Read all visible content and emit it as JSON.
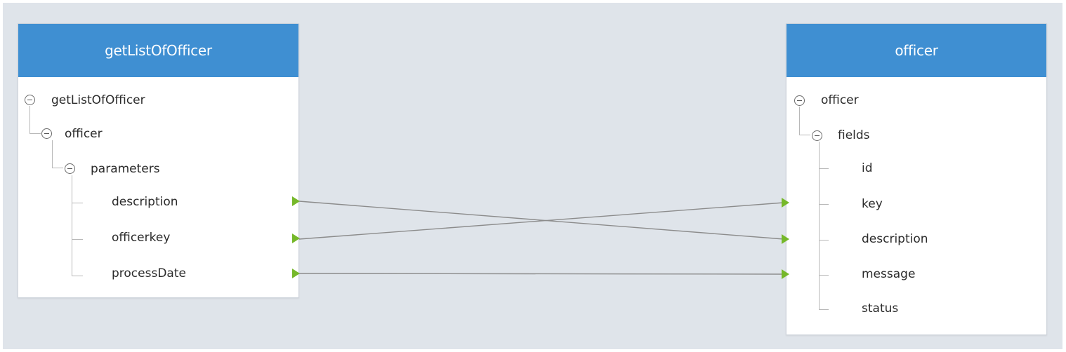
{
  "source_panel": {
    "title": "getListOfOfficer",
    "root": "getListOfOfficer",
    "child": "officer",
    "group": "parameters",
    "fields": [
      "description",
      "officerkey",
      "processDate"
    ]
  },
  "target_panel": {
    "title": "officer",
    "root": "officer",
    "group": "fields",
    "fields": [
      "id",
      "key",
      "description",
      "message",
      "status"
    ]
  },
  "mappings": [
    {
      "from": "description",
      "to": "description"
    },
    {
      "from": "officerkey",
      "to": "key"
    },
    {
      "from": "processDate",
      "to": "message"
    }
  ],
  "colors": {
    "header": "#3f8fd2",
    "canvas": "#dfe4ea",
    "port": "#76b82a",
    "link": "#8c8c8c"
  }
}
